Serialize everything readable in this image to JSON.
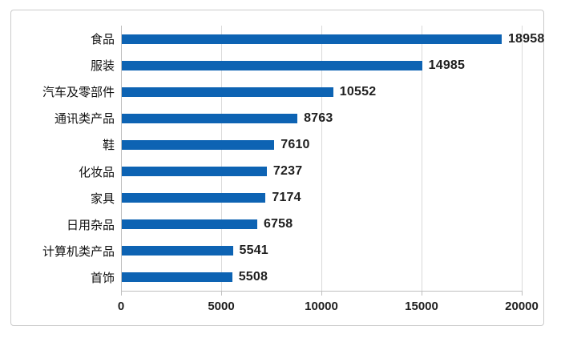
{
  "chart_data": {
    "type": "bar",
    "orientation": "horizontal",
    "title": "",
    "xlabel": "",
    "ylabel": "",
    "categories": [
      "食品",
      "服装",
      "汽车及零部件",
      "通讯类产品",
      "鞋",
      "化妆品",
      "家具",
      "日用杂品",
      "计算机类产品",
      "首饰"
    ],
    "values": [
      18958,
      14985,
      10552,
      8763,
      7610,
      7237,
      7174,
      6758,
      5541,
      5508
    ],
    "data_labels": [
      "18958",
      "14985",
      "10552",
      "8763",
      "7610",
      "7237",
      "7174",
      "6758",
      "5541",
      "5508"
    ],
    "xlim": [
      0,
      20000
    ],
    "x_ticks": [
      0,
      5000,
      10000,
      15000,
      20000
    ],
    "x_tick_labels": [
      "0",
      "5000",
      "10000",
      "15000",
      "20000"
    ],
    "grid": "vertical-gridlines-on",
    "legend": "none"
  },
  "colors": {
    "bar": "#0d63b3",
    "gridline": "#d9d9d9",
    "axis": "#bfbfbf",
    "frame_border": "#cbcbcb",
    "label_text": "#1f1f1f",
    "background": "#ffffff"
  }
}
